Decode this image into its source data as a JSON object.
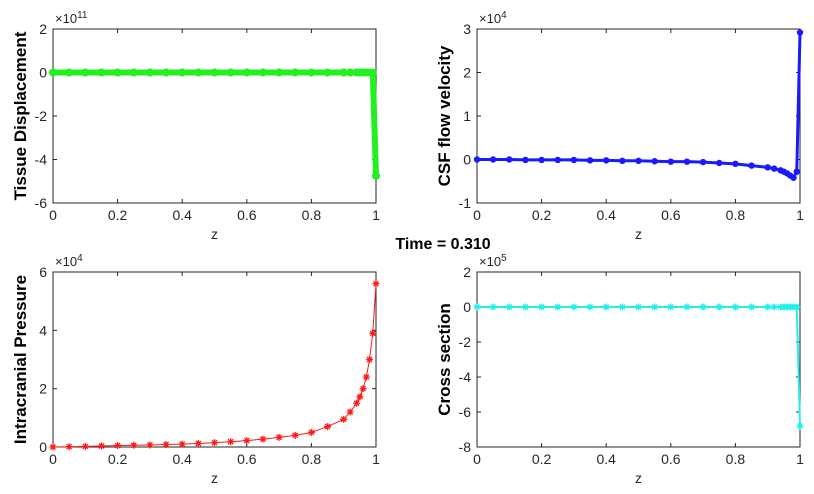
{
  "figure_title": "Time = 0.310",
  "chart_data": [
    {
      "type": "line",
      "ylabel": "Tissue Displacement",
      "xlabel": "z",
      "exponent_base": "×10",
      "exponent_power": "11",
      "xlim": [
        0,
        1
      ],
      "ylim": [
        -6,
        2
      ],
      "xticks": [
        0,
        0.2,
        0.4,
        0.6,
        0.8,
        1
      ],
      "xtick_labels": [
        "0",
        "0.2",
        "0.4",
        "0.6",
        "0.8",
        "1"
      ],
      "yticks": [
        -6,
        -4,
        -2,
        0,
        2
      ],
      "ytick_labels": [
        "-6",
        "-4",
        "-2",
        "0",
        "2"
      ],
      "color": "#22f022",
      "marker": "circle",
      "line_width": 6,
      "x": [
        0,
        0.05,
        0.1,
        0.15,
        0.2,
        0.25,
        0.3,
        0.35,
        0.4,
        0.45,
        0.5,
        0.55,
        0.6,
        0.65,
        0.7,
        0.75,
        0.8,
        0.85,
        0.9,
        0.92,
        0.94,
        0.95,
        0.96,
        0.97,
        0.98,
        0.99,
        1
      ],
      "y": [
        0,
        0,
        0,
        0,
        0,
        0,
        0,
        0,
        0,
        0,
        0,
        0,
        0,
        0,
        0,
        0,
        0,
        0,
        0,
        0,
        0,
        0,
        0,
        0,
        0,
        0,
        -4.75
      ]
    },
    {
      "type": "line",
      "ylabel": "CSF flow velocity",
      "xlabel": "z",
      "exponent_base": "×10",
      "exponent_power": "4",
      "xlim": [
        0,
        1
      ],
      "ylim": [
        -1,
        3
      ],
      "xticks": [
        0,
        0.2,
        0.4,
        0.6,
        0.8,
        1
      ],
      "xtick_labels": [
        "0",
        "0.2",
        "0.4",
        "0.6",
        "0.8",
        "1"
      ],
      "yticks": [
        -1,
        0,
        1,
        2,
        3
      ],
      "ytick_labels": [
        "-1",
        "0",
        "1",
        "2",
        "3"
      ],
      "color": "#1a1aff",
      "marker": "circle",
      "line_width": 3,
      "x": [
        0,
        0.05,
        0.1,
        0.15,
        0.2,
        0.25,
        0.3,
        0.35,
        0.4,
        0.45,
        0.5,
        0.55,
        0.6,
        0.65,
        0.7,
        0.75,
        0.8,
        0.85,
        0.9,
        0.92,
        0.94,
        0.95,
        0.96,
        0.97,
        0.98,
        0.99,
        1
      ],
      "y": [
        0,
        0,
        0,
        -0.01,
        -0.01,
        -0.01,
        -0.01,
        -0.02,
        -0.02,
        -0.03,
        -0.03,
        -0.04,
        -0.05,
        -0.05,
        -0.06,
        -0.08,
        -0.1,
        -0.14,
        -0.18,
        -0.21,
        -0.25,
        -0.28,
        -0.32,
        -0.37,
        -0.42,
        -0.28,
        2.92
      ]
    },
    {
      "type": "line",
      "ylabel": "Intracranial Pressure",
      "xlabel": "z",
      "exponent_base": "×10",
      "exponent_power": "4",
      "xlim": [
        0,
        1
      ],
      "ylim": [
        0,
        6
      ],
      "xticks": [
        0,
        0.2,
        0.4,
        0.6,
        0.8,
        1
      ],
      "xtick_labels": [
        "0",
        "0.2",
        "0.4",
        "0.6",
        "0.8",
        "1"
      ],
      "yticks": [
        0,
        2,
        4,
        6
      ],
      "ytick_labels": [
        "0",
        "2",
        "4",
        "6"
      ],
      "color": "#ff1a1a",
      "marker": "asterisk",
      "line_width": 1,
      "x": [
        0,
        0.05,
        0.1,
        0.15,
        0.2,
        0.25,
        0.3,
        0.35,
        0.4,
        0.45,
        0.5,
        0.55,
        0.6,
        0.65,
        0.7,
        0.75,
        0.8,
        0.85,
        0.9,
        0.92,
        0.94,
        0.95,
        0.96,
        0.97,
        0.98,
        0.99,
        1
      ],
      "y": [
        0,
        0.01,
        0.02,
        0.035,
        0.05,
        0.06,
        0.07,
        0.085,
        0.1,
        0.12,
        0.15,
        0.18,
        0.22,
        0.27,
        0.33,
        0.4,
        0.5,
        0.7,
        0.95,
        1.2,
        1.5,
        1.72,
        2.0,
        2.4,
        3.0,
        3.9,
        5.6
      ]
    },
    {
      "type": "line",
      "ylabel": "Cross section",
      "xlabel": "z",
      "exponent_base": "×10",
      "exponent_power": "5",
      "xlim": [
        0,
        1
      ],
      "ylim": [
        -8,
        2
      ],
      "xticks": [
        0,
        0.2,
        0.4,
        0.6,
        0.8,
        1
      ],
      "xtick_labels": [
        "0",
        "0.2",
        "0.4",
        "0.6",
        "0.8",
        "1"
      ],
      "yticks": [
        -8,
        -6,
        -4,
        -2,
        0,
        2
      ],
      "ytick_labels": [
        "-8",
        "-6",
        "-4",
        "-2",
        "0",
        "2"
      ],
      "color": "#22eeee",
      "marker": "asterisk",
      "line_width": 2,
      "x": [
        0,
        0.05,
        0.1,
        0.15,
        0.2,
        0.25,
        0.3,
        0.35,
        0.4,
        0.45,
        0.5,
        0.55,
        0.6,
        0.65,
        0.7,
        0.75,
        0.8,
        0.85,
        0.9,
        0.92,
        0.94,
        0.95,
        0.96,
        0.97,
        0.98,
        0.99,
        1
      ],
      "y": [
        0,
        0,
        0,
        0,
        0,
        0,
        0,
        0,
        0,
        0,
        0,
        0,
        0,
        0,
        0,
        0,
        0,
        0,
        0,
        0,
        0,
        0,
        0,
        0,
        0,
        0,
        -6.8
      ]
    }
  ]
}
